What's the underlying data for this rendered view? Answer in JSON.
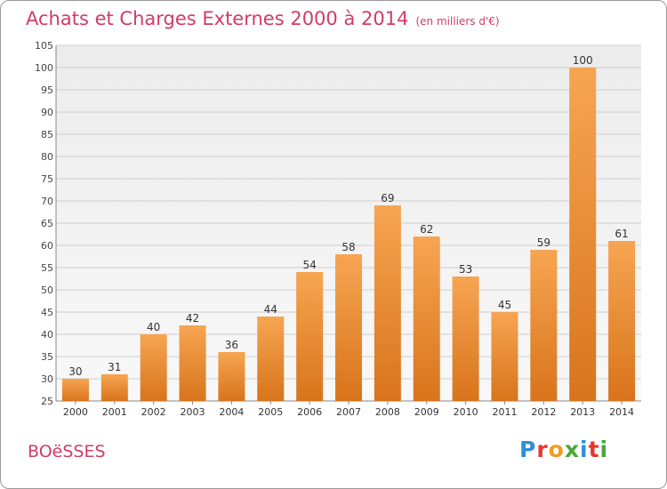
{
  "chart_data": {
    "type": "bar",
    "title": "Achats et Charges Externes 2000 à 2014",
    "subtitle": "(en milliers d'€)",
    "categories": [
      "2000",
      "2001",
      "2002",
      "2003",
      "2004",
      "2005",
      "2006",
      "2007",
      "2008",
      "2009",
      "2010",
      "2011",
      "2012",
      "2013",
      "2014"
    ],
    "values": [
      30,
      31,
      40,
      42,
      36,
      44,
      54,
      58,
      69,
      62,
      53,
      45,
      59,
      100,
      61
    ],
    "ylim": [
      25,
      105
    ],
    "yticks": [
      25,
      30,
      35,
      40,
      45,
      50,
      55,
      60,
      65,
      70,
      75,
      80,
      85,
      90,
      95,
      100,
      105
    ],
    "grid": true,
    "bar_color": "#f0903a"
  },
  "footer": {
    "place": "BOëSSES",
    "logo_letters": [
      {
        "ch": "P",
        "color": "#2f8fd6"
      },
      {
        "ch": "r",
        "color": "#e5372f"
      },
      {
        "ch": "o",
        "color": "#f39b1f"
      },
      {
        "ch": "x",
        "color": "#4aa63b"
      },
      {
        "ch": "i",
        "color": "#2f8fd6"
      },
      {
        "ch": "t",
        "color": "#e5372f"
      },
      {
        "ch": "i",
        "color": "#4aa63b"
      }
    ]
  }
}
